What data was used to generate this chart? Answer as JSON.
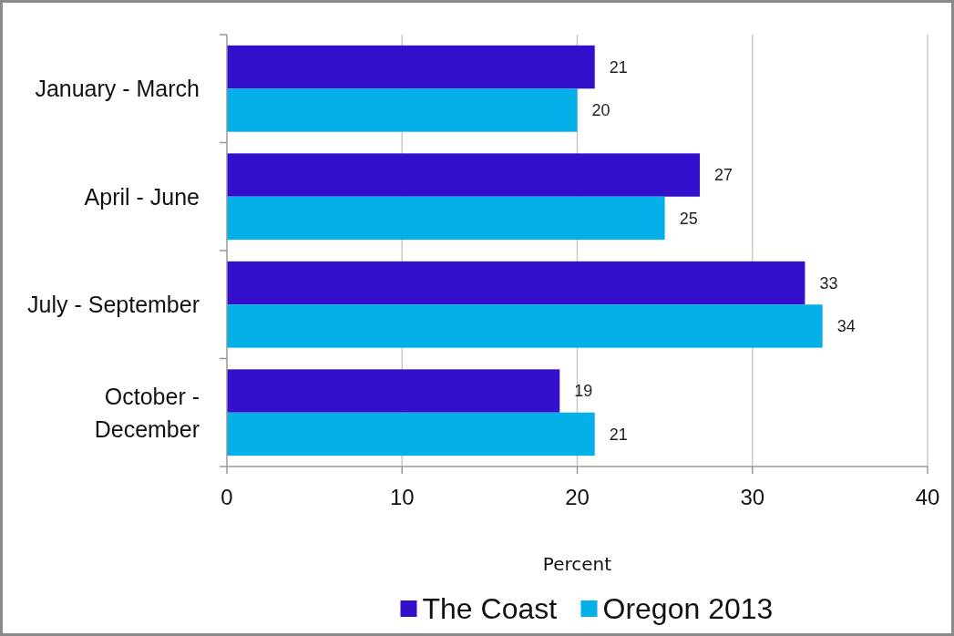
{
  "chart_data": {
    "type": "bar",
    "orientation": "horizontal",
    "categories": [
      "January - March",
      "April - June",
      "July - September",
      "October - December"
    ],
    "series": [
      {
        "name": "The Coast",
        "color": "#3510cc",
        "values": [
          21,
          27,
          33,
          19
        ]
      },
      {
        "name": "Oregon 2013",
        "color": "#05b0e8",
        "values": [
          20,
          25,
          34,
          21
        ]
      }
    ],
    "xlabel": "Percent",
    "xlim": [
      0,
      40
    ],
    "xticks": [
      0,
      10,
      20,
      30,
      40
    ],
    "grid": "x",
    "data_labels": true,
    "legend": "bottom"
  }
}
